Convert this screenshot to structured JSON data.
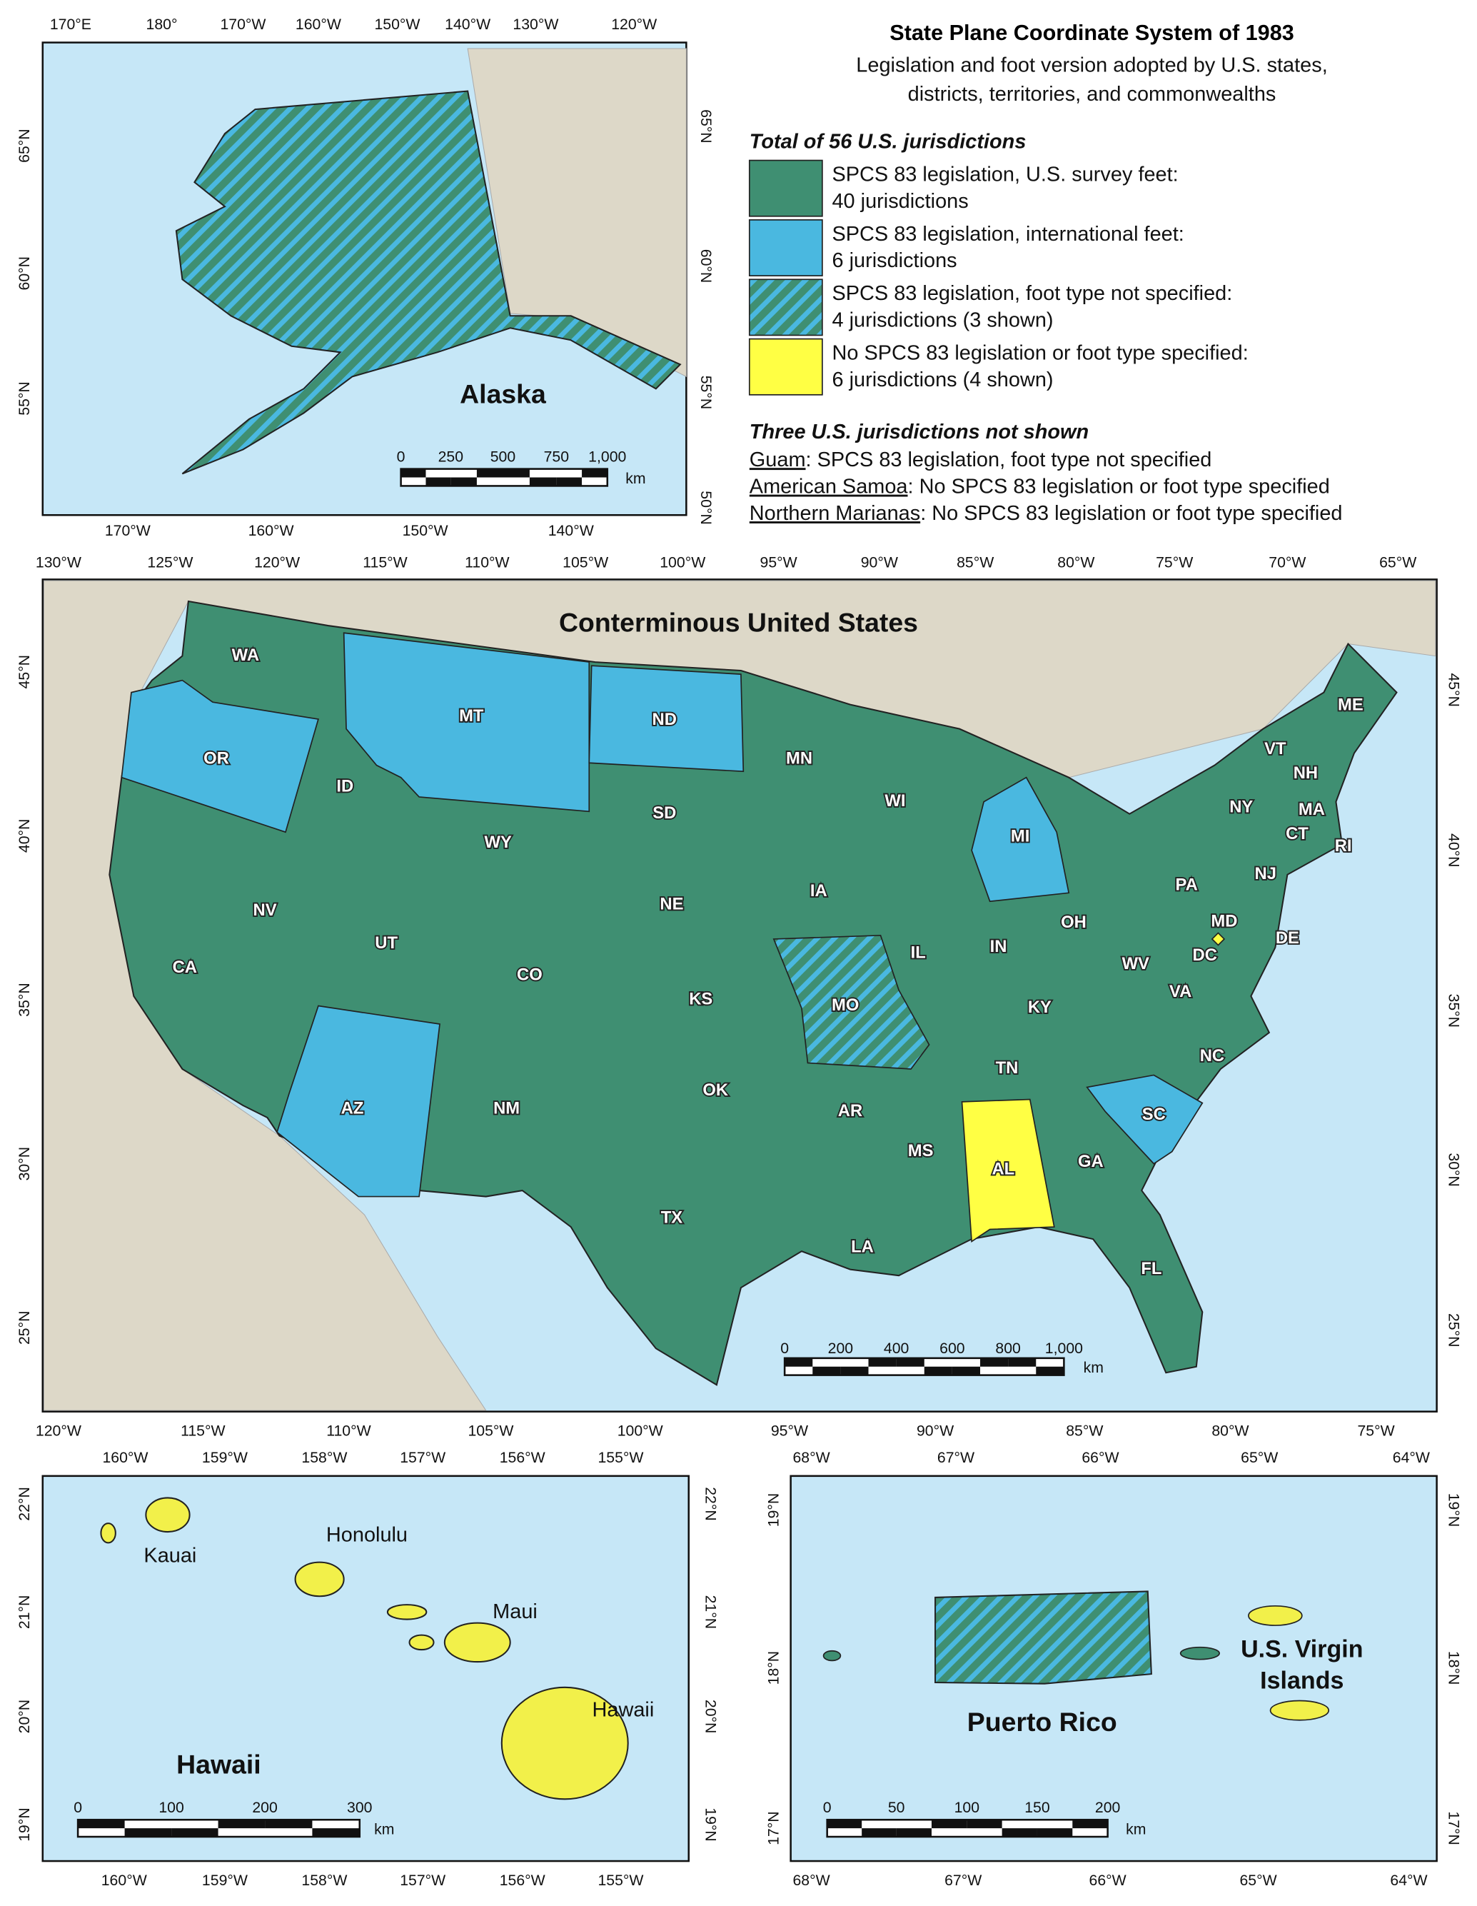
{
  "title": "State Plane Coordinate System of 1983",
  "subtitle": [
    "Legislation and foot version adopted by U.S. states,",
    "districts, territories, and commonwealths"
  ],
  "legend": {
    "heading": "Total of 56 U.S. jurisdictions",
    "items": [
      {
        "label": "SPCS 83 legislation, U.S. survey feet:",
        "count": "40 jurisdictions",
        "color": "#3f8f72"
      },
      {
        "label": "SPCS 83 legislation, international feet:",
        "count": "6 jurisdictions",
        "color": "#4ab8e0"
      },
      {
        "label": "SPCS 83 legislation, foot type not specified:",
        "count": "4 jurisdictions (3 shown)",
        "pattern": "hatched"
      },
      {
        "label": "No SPCS 83 legislation or foot type specified:",
        "count": "6 jurisdictions (4 shown)",
        "color": "#ffff44"
      }
    ]
  },
  "not_shown": {
    "heading": "Three U.S. jurisdictions not shown",
    "items": [
      {
        "name": "Guam",
        "status": ":  SPCS 83 legislation, foot type not specified"
      },
      {
        "name": "American Samoa",
        "status": ":  No SPCS 83 legislation or foot type specified"
      },
      {
        "name": "Northern Marianas",
        "status": ":  No SPCS 83 legislation or foot type specified"
      }
    ]
  },
  "alaska": {
    "title": "Alaska",
    "lon_top": [
      "170°E",
      "180°",
      "170°W",
      "160°W",
      "150°W",
      "140°W",
      "130°W",
      "120°W"
    ],
    "lon_bottom": [
      "170°W",
      "160°W",
      "150°W",
      "140°W"
    ],
    "lat_left": [
      "65°N",
      "60°N",
      "55°N"
    ],
    "lat_right": [
      "65°N",
      "60°N",
      "55°N",
      "50°N"
    ],
    "scale": [
      "0",
      "250",
      "500",
      "750",
      "1,000"
    ],
    "unit": "km"
  },
  "conus": {
    "title": "Conterminous United States",
    "lon_top": [
      "130°W",
      "125°W",
      "120°W",
      "115°W",
      "110°W",
      "105°W",
      "100°W",
      "95°W",
      "90°W",
      "85°W",
      "80°W",
      "75°W",
      "70°W",
      "65°W"
    ],
    "lon_bottom": [
      "120°W",
      "115°W",
      "110°W",
      "105°W",
      "100°W",
      "95°W",
      "90°W",
      "85°W",
      "80°W",
      "75°W"
    ],
    "lat_left": [
      "45°N",
      "40°N",
      "35°N",
      "30°N",
      "25°N"
    ],
    "lat_right": [
      "45°N",
      "40°N",
      "35°N",
      "30°N",
      "25°N"
    ],
    "scale": [
      "0",
      "200",
      "400",
      "600",
      "800",
      "1,000"
    ],
    "unit": "km",
    "states": [
      [
        "WA",
        "CA",
        "NV",
        "ID",
        "WY",
        "UT",
        "CO",
        "NM",
        "SD",
        "NE",
        "KS",
        "OK",
        "TX",
        "MN",
        "IA",
        "AR",
        "LA",
        "WI",
        "IL",
        "IN",
        "OH",
        "KY",
        "TN",
        "MS",
        "GA",
        "FL",
        "NC",
        "VA",
        "WV",
        "PA",
        "NY",
        "ME",
        "VT",
        "NH",
        "MA",
        "CT",
        "RI",
        "NJ",
        "DE",
        "MD"
      ],
      [
        "OR",
        "MT",
        "ND",
        "AZ",
        "MI",
        "SC"
      ],
      [
        "MO"
      ],
      [
        "AL",
        "DC"
      ]
    ]
  },
  "hawaii": {
    "title": "Hawaii",
    "places": [
      "Kauai",
      "Honolulu",
      "Maui",
      "Hawaii"
    ],
    "lon_top": [
      "160°W",
      "159°W",
      "158°W",
      "157°W",
      "156°W",
      "155°W"
    ],
    "lon_bottom": [
      "160°W",
      "159°W",
      "158°W",
      "157°W",
      "156°W",
      "155°W"
    ],
    "lat_left": [
      "22°N",
      "21°N",
      "20°N",
      "19°N"
    ],
    "lat_right": [
      "22°N",
      "21°N",
      "20°N",
      "19°N"
    ],
    "scale": [
      "0",
      "100",
      "200",
      "300"
    ],
    "unit": "km"
  },
  "puerto_rico": {
    "title": "Puerto Rico",
    "places": [
      "U.S. Virgin",
      "Islands"
    ],
    "lon_top": [
      "68°W",
      "67°W",
      "66°W",
      "65°W",
      "64°W"
    ],
    "lon_bottom": [
      "68°W",
      "67°W",
      "66°W",
      "65°W",
      "64°W"
    ],
    "lat_left": [
      "19°N",
      "18°N",
      "17°N"
    ],
    "lat_right": [
      "19°N",
      "18°N",
      "17°N"
    ],
    "scale": [
      "0",
      "50",
      "100",
      "150",
      "200"
    ],
    "unit": "km"
  }
}
